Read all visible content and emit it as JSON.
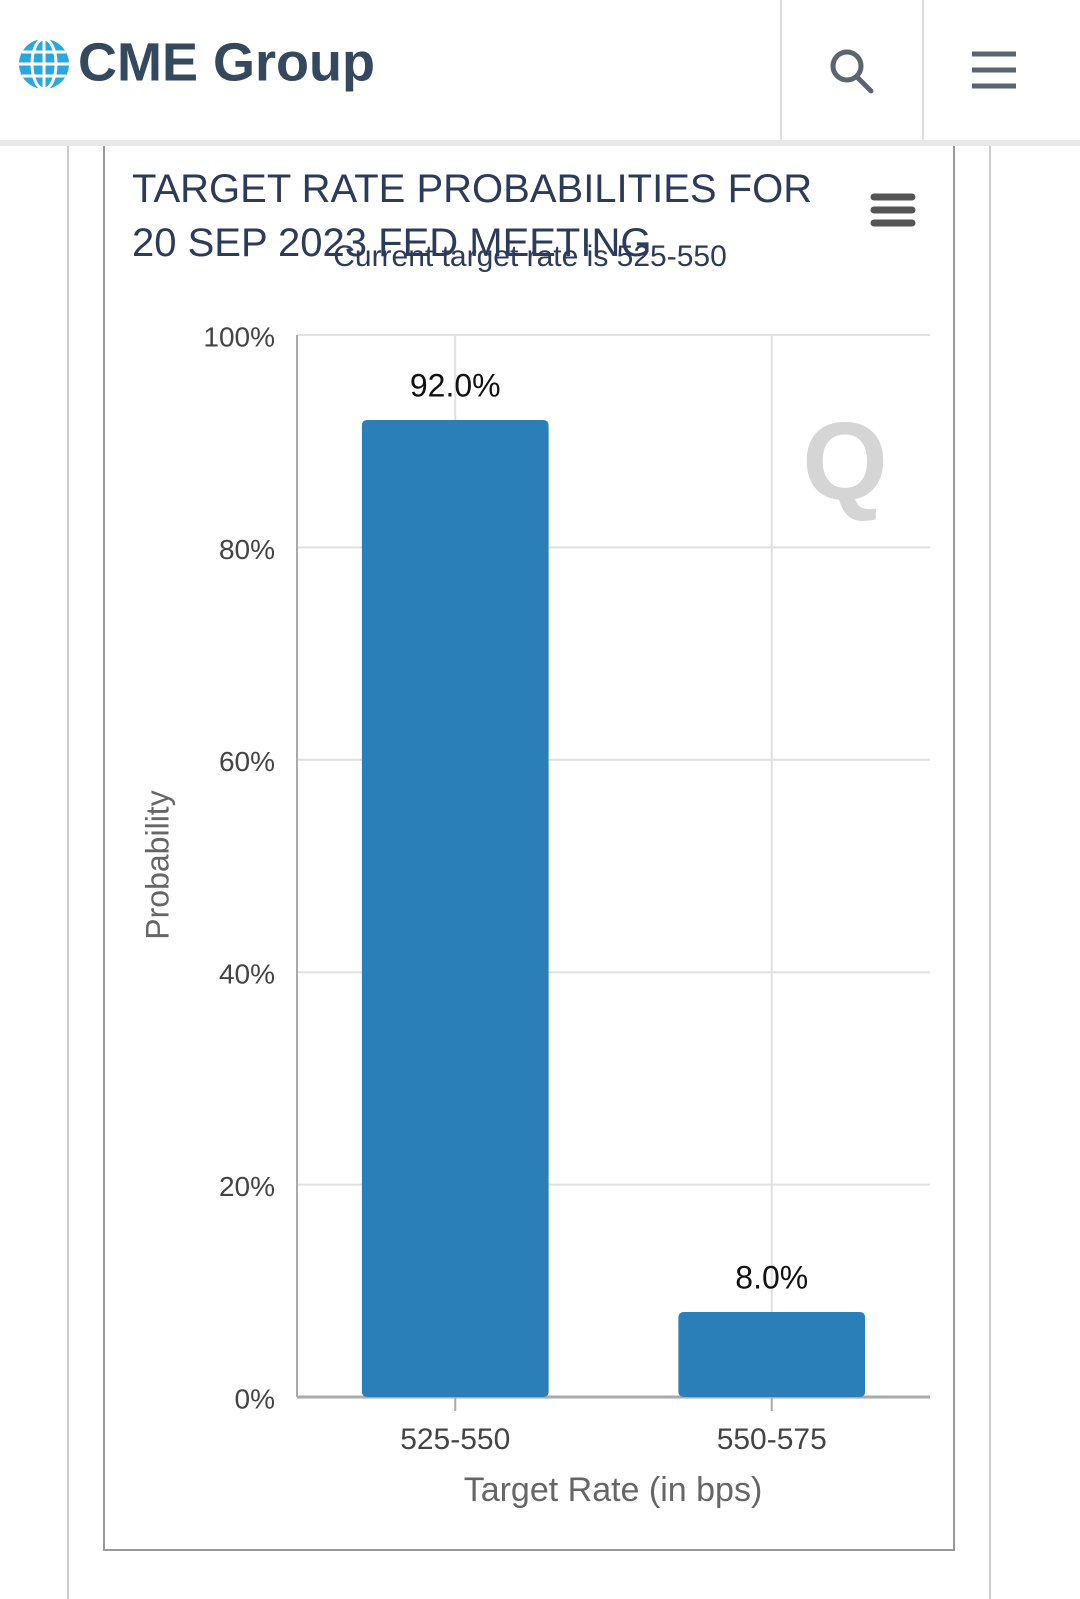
{
  "header": {
    "brand": "CME Group"
  },
  "chart_data": {
    "type": "bar",
    "title": "TARGET RATE PROBABILITIES FOR 20 SEP 2023 FED MEETING",
    "subtitle": "Current target rate is 525-550",
    "x_label": "Target Rate (in bps)",
    "y_label": "Probability",
    "categories": [
      "525-550",
      "550-575"
    ],
    "values": [
      92.0,
      8.0
    ],
    "value_labels": [
      "92.0%",
      "8.0%"
    ],
    "color": "#2b7fb8",
    "ylim": [
      0,
      100
    ],
    "yticks": [
      {
        "value": 0,
        "label": "0%"
      },
      {
        "value": 20,
        "label": "20%"
      },
      {
        "value": 40,
        "label": "40%"
      },
      {
        "value": 60,
        "label": "60%"
      },
      {
        "value": 80,
        "label": "80%"
      },
      {
        "value": 100,
        "label": "100%"
      }
    ],
    "grid": true
  }
}
